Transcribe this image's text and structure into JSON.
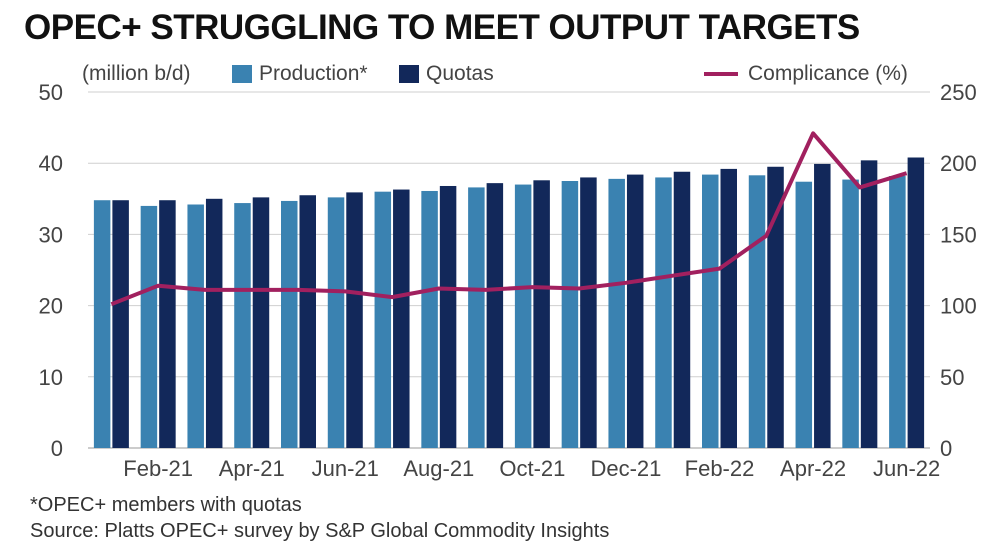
{
  "title": "OPEC+ STRUGGLING TO MEET OUTPUT TARGETS",
  "unit_label": "(million b/d)",
  "colors": {
    "production": "#3a82b1",
    "quotas": "#12285a",
    "compliance": "#a1205f",
    "grid": "#cfcfcf",
    "text": "#444444"
  },
  "legend": {
    "production": "Production*",
    "quotas": "Quotas",
    "compliance": "Complicance (%)"
  },
  "footnotes": {
    "note": "*OPEC+ members with quotas",
    "source": "Source: Platts OPEC+ survey by S&P Global Commodity Insights"
  },
  "chart_data": {
    "type": "bar",
    "categories": [
      "Jan-21",
      "Feb-21",
      "Mar-21",
      "Apr-21",
      "May-21",
      "Jun-21",
      "Jul-21",
      "Aug-21",
      "Sep-21",
      "Oct-21",
      "Nov-21",
      "Dec-21",
      "Jan-22",
      "Feb-22",
      "Mar-22",
      "Apr-22",
      "May-22",
      "Jun-22"
    ],
    "x_tick_labels": [
      "Feb-21",
      "Apr-21",
      "Jun-21",
      "Aug-21",
      "Oct-21",
      "Dec-21",
      "Feb-22",
      "Apr-22",
      "Jun-22"
    ],
    "series": [
      {
        "name": "Production*",
        "type": "bar",
        "axis": "left",
        "values": [
          34.8,
          34.0,
          34.2,
          34.4,
          34.7,
          35.2,
          36.0,
          36.1,
          36.6,
          37.0,
          37.5,
          37.8,
          38.0,
          38.4,
          38.3,
          37.4,
          37.7,
          38.2
        ]
      },
      {
        "name": "Quotas",
        "type": "bar",
        "axis": "left",
        "values": [
          34.8,
          34.8,
          35.0,
          35.2,
          35.5,
          35.9,
          36.3,
          36.8,
          37.2,
          37.6,
          38.0,
          38.4,
          38.8,
          39.2,
          39.5,
          39.9,
          40.4,
          40.8
        ]
      },
      {
        "name": "Complicance (%)",
        "type": "line",
        "axis": "right",
        "values": [
          101,
          114,
          111,
          111,
          111,
          110,
          106,
          112,
          111,
          113,
          112,
          116,
          121,
          126,
          149,
          221,
          183,
          193
        ]
      }
    ],
    "y_left": {
      "min": 0,
      "max": 50,
      "ticks": [
        0,
        10,
        20,
        30,
        40,
        50
      ]
    },
    "y_right": {
      "min": 0,
      "max": 250,
      "ticks": [
        0,
        50,
        100,
        150,
        200,
        250
      ]
    },
    "grid": true,
    "legend_position": "top"
  }
}
